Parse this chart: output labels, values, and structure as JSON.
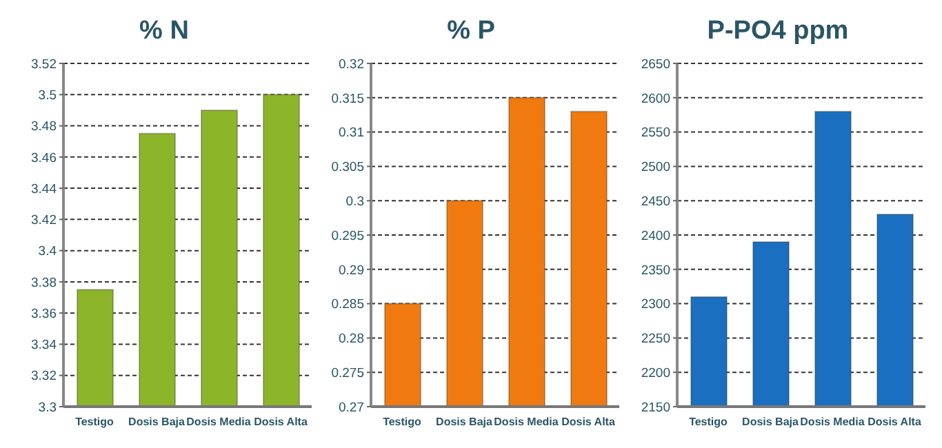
{
  "chart_data": [
    {
      "type": "bar",
      "title": "% N",
      "categories": [
        "Testigo",
        "Dosis Baja",
        "Dosis Media",
        "Dosis Alta"
      ],
      "values": [
        3.375,
        3.475,
        3.49,
        3.5
      ],
      "color": "#8db52a",
      "ylim": [
        3.3,
        3.52
      ],
      "yticks": [
        3.3,
        3.32,
        3.34,
        3.36,
        3.38,
        3.4,
        3.42,
        3.44,
        3.46,
        3.48,
        3.5,
        3.52
      ],
      "grid": "y",
      "legend": false
    },
    {
      "type": "bar",
      "title": "% P",
      "categories": [
        "Testigo",
        "Dosis Baja",
        "Dosis Media",
        "Dosis Alta"
      ],
      "values": [
        0.285,
        0.3,
        0.315,
        0.313
      ],
      "color": "#f07a10",
      "ylim": [
        0.27,
        0.32
      ],
      "yticks": [
        0.27,
        0.275,
        0.28,
        0.285,
        0.29,
        0.295,
        0.3,
        0.305,
        0.31,
        0.315,
        0.32
      ],
      "grid": "y",
      "legend": false
    },
    {
      "type": "bar",
      "title": "P-PO4 ppm",
      "categories": [
        "Testigo",
        "Dosis Baja",
        "Dosis Media",
        "Dosis Alta"
      ],
      "values": [
        2310,
        2390,
        2580,
        2430
      ],
      "color": "#1a6fc0",
      "ylim": [
        2150,
        2650
      ],
      "yticks": [
        2150,
        2200,
        2250,
        2300,
        2350,
        2400,
        2450,
        2500,
        2550,
        2600,
        2650
      ],
      "grid": "y",
      "legend": false
    }
  ]
}
